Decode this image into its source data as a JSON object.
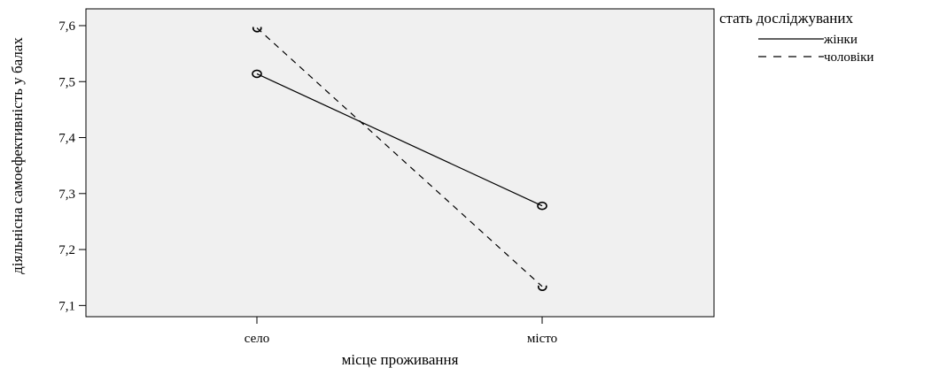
{
  "chart_data": {
    "type": "line",
    "title": "",
    "xlabel": "місце проживання",
    "ylabel": "діяльнісна самоефективність у балах",
    "categories": [
      "село",
      "місто"
    ],
    "ylim": [
      7.08,
      7.63
    ],
    "yticks": [
      "7,1",
      "7,2",
      "7,3",
      "7,4",
      "7,5",
      "7,6"
    ],
    "grid": false,
    "legend": {
      "title": "стать досліджуваних",
      "placement": "right"
    },
    "series": [
      {
        "name": "жінки",
        "values": [
          7.514,
          7.278
        ],
        "line_style": "solid",
        "marker": "circle"
      },
      {
        "name": "чоловіки",
        "values": [
          7.596,
          7.134
        ],
        "line_style": "dashed",
        "marker": "circle-broken"
      }
    ]
  },
  "colors": {
    "plot_background": "#f0f0f0",
    "line": "#000000",
    "page": "#ffffff"
  }
}
